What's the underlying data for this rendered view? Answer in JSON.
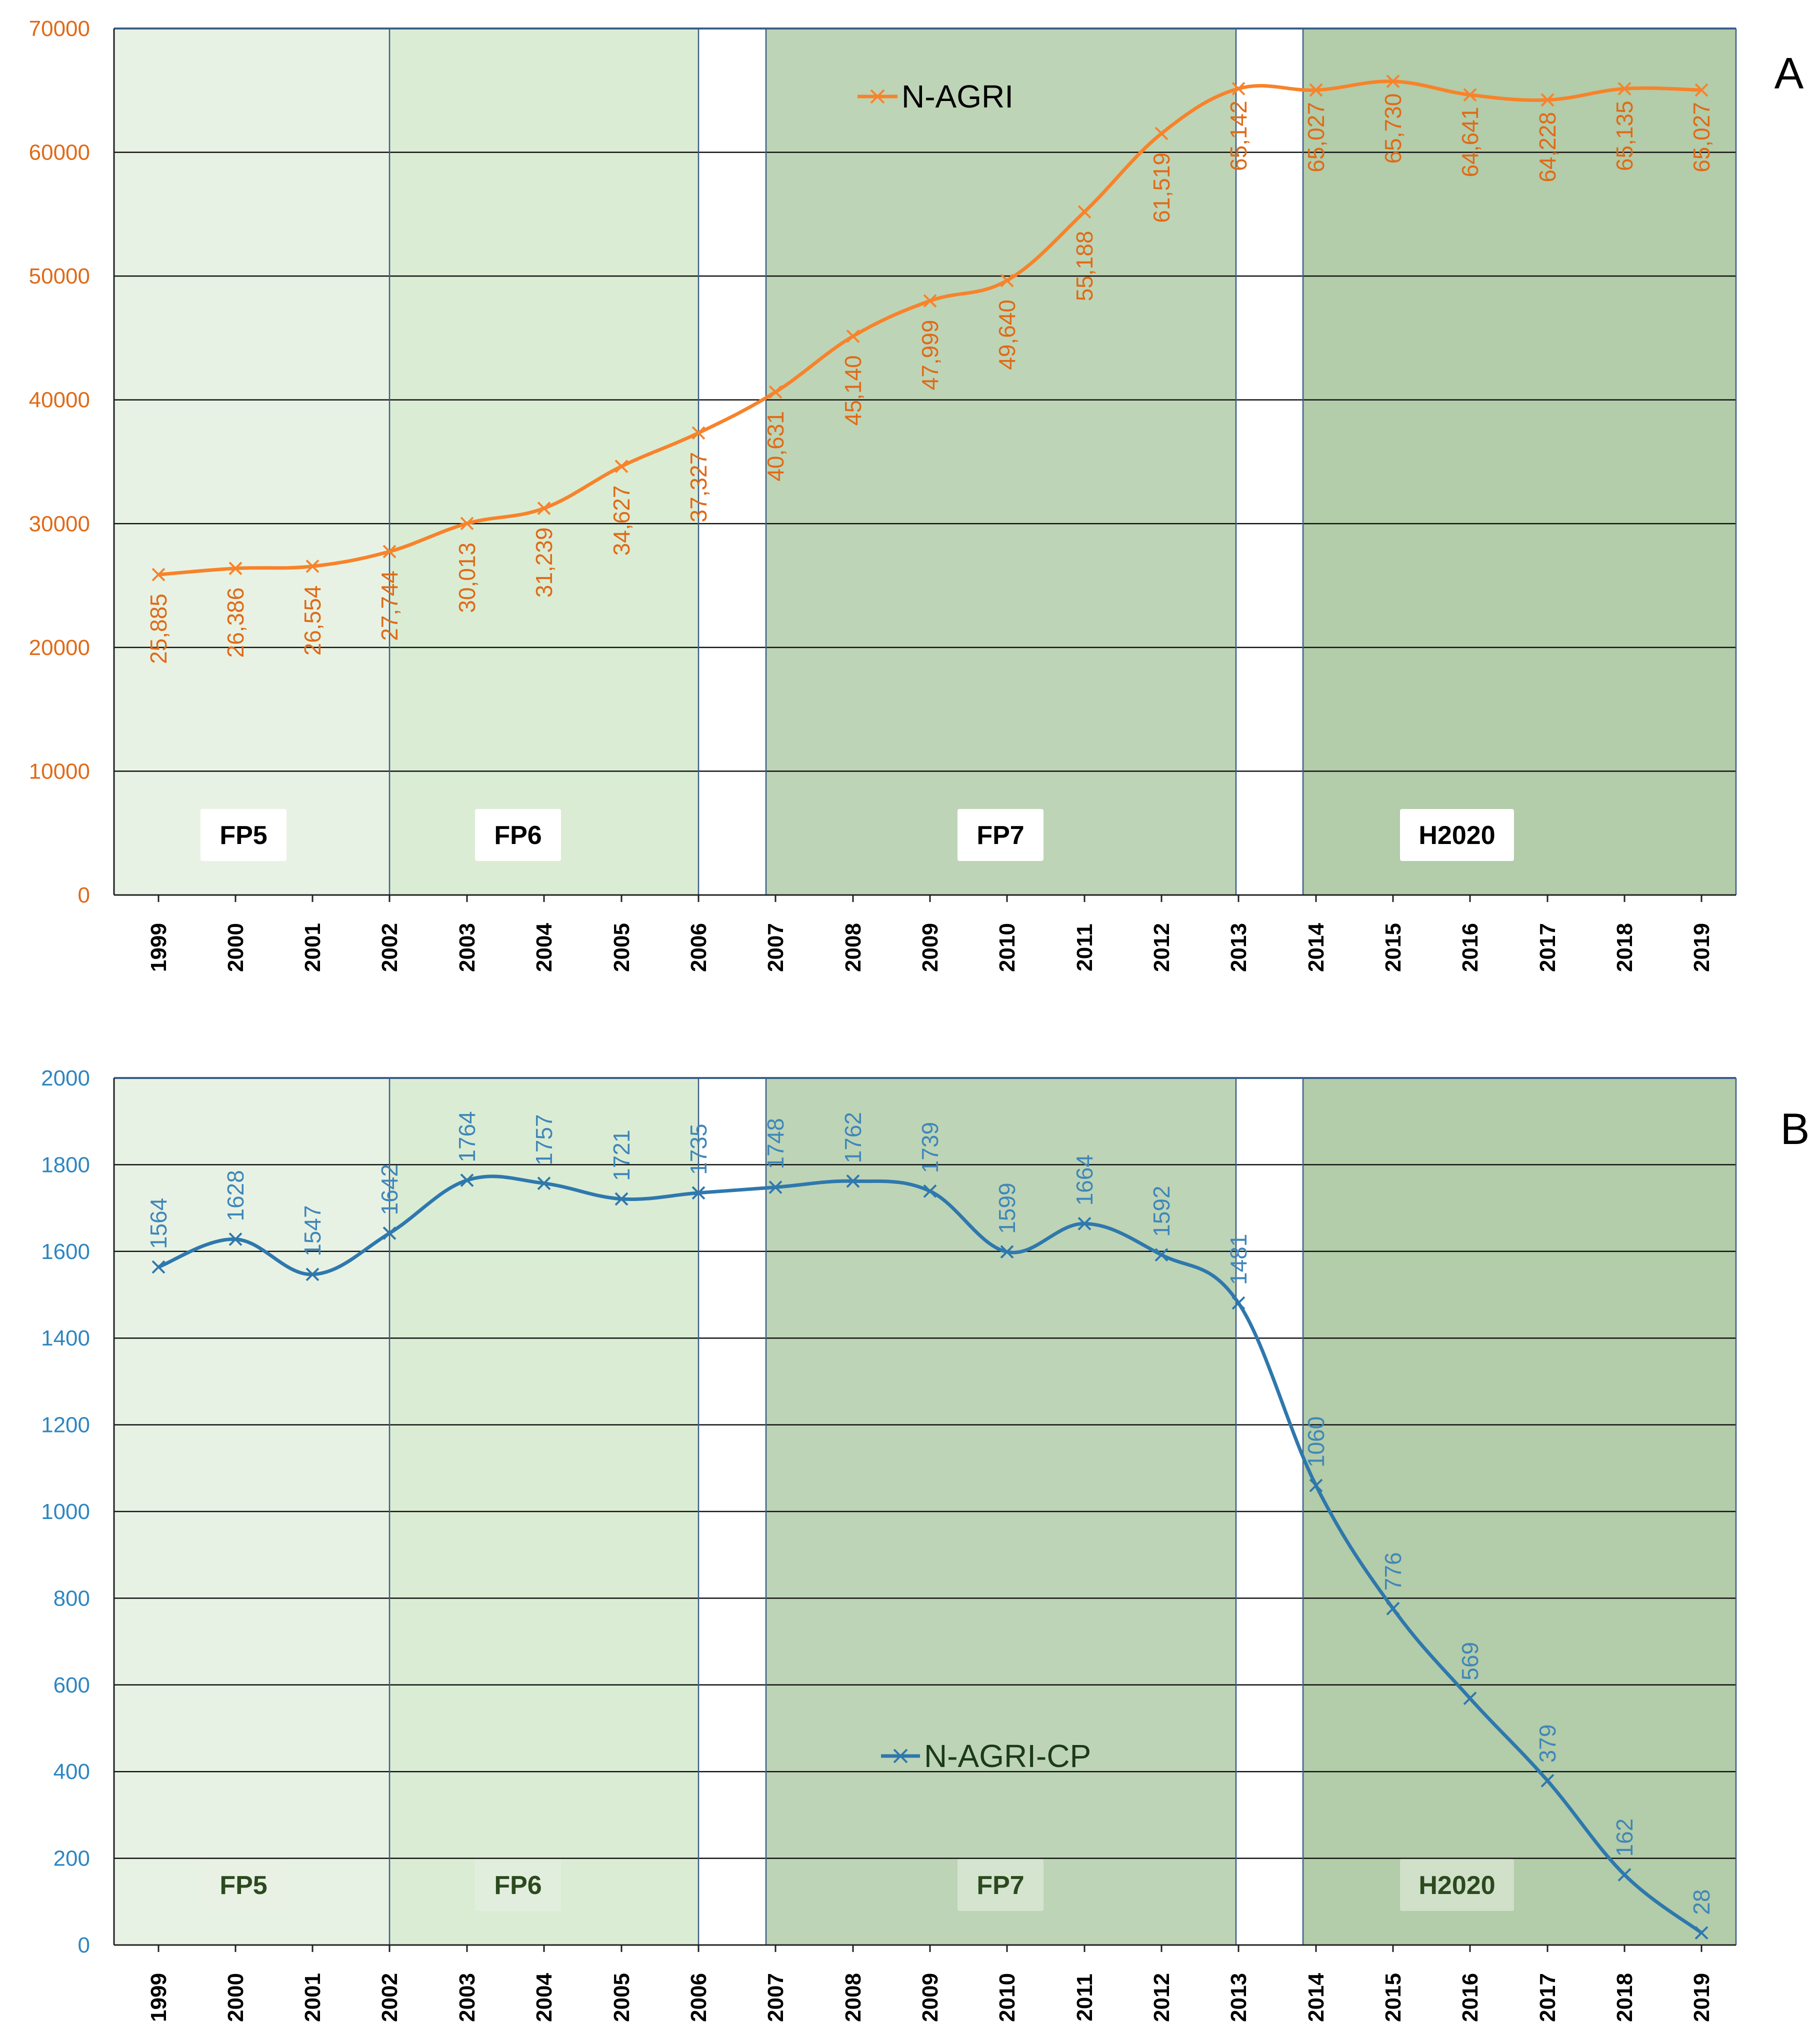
{
  "chart_data": [
    {
      "type": "line",
      "panel": "A",
      "legend": "N-AGRI",
      "line_color": "#f7832b",
      "label_color": "#e06a17",
      "axis_color": "#e06a17",
      "ylim": [
        0,
        70000
      ],
      "yticks": [
        "0",
        "10000",
        "20000",
        "30000",
        "40000",
        "50000",
        "60000",
        "70000"
      ],
      "x": [
        "1999",
        "2000",
        "2001",
        "2002",
        "2003",
        "2004",
        "2005",
        "2006",
        "2007",
        "2008",
        "2009",
        "2010",
        "2011",
        "2012",
        "2013",
        "2014",
        "2015",
        "2016",
        "2017",
        "2018",
        "2019"
      ],
      "values": [
        25885,
        26386,
        26554,
        27744,
        30013,
        31239,
        34627,
        37327,
        40631,
        45140,
        47999,
        49640,
        55188,
        61519,
        65142,
        65027,
        65730,
        64641,
        64228,
        65135,
        65027
      ],
      "data_labels": [
        "25,885",
        "26,386",
        "26,554",
        "27,744",
        "30,013",
        "31,239",
        "34,627",
        "37,327",
        "40,631",
        "45,140",
        "47,999",
        "49,640",
        "55,188",
        "61,519",
        "65,142",
        "65,027",
        "65,730",
        "64,641",
        "64,228",
        "65,135",
        "65,027"
      ],
      "periods": [
        {
          "name": "FP5",
          "from": "1999",
          "to": "2002",
          "color": "#e8f2e4"
        },
        {
          "name": "FP6",
          "from": "2002",
          "to": "2006",
          "color": "#dbecd4"
        },
        {
          "name": "FP7",
          "from": "2007",
          "to": "2013",
          "color": "#bed4b6"
        },
        {
          "name": "H2020",
          "from": "2014",
          "to": "2019",
          "color": "#b3cca9"
        }
      ]
    },
    {
      "type": "line",
      "panel": "B",
      "legend": "N-AGRI-CP",
      "line_color": "#2e78ad",
      "label_color": "#3f86b9",
      "axis_color": "#2e86c1",
      "ylim": [
        0,
        2000
      ],
      "yticks": [
        "0",
        "200",
        "400",
        "600",
        "800",
        "1000",
        "1200",
        "1400",
        "1600",
        "1800",
        "2000"
      ],
      "x": [
        "1999",
        "2000",
        "2001",
        "2002",
        "2003",
        "2004",
        "2005",
        "2006",
        "2007",
        "2008",
        "2009",
        "2010",
        "2011",
        "2012",
        "2013",
        "2014",
        "2015",
        "2016",
        "2017",
        "2018",
        "2019"
      ],
      "values": [
        1564,
        1628,
        1547,
        1642,
        1764,
        1757,
        1721,
        1735,
        1748,
        1762,
        1739,
        1599,
        1664,
        1592,
        1481,
        1060,
        776,
        569,
        379,
        162,
        28
      ],
      "data_labels": [
        "1564",
        "1628",
        "1547",
        "1642",
        "1764",
        "1757",
        "1721",
        "1735",
        "1748",
        "1762",
        "1739",
        "1599",
        "1664",
        "1592",
        "1481",
        "1060",
        "776",
        "569",
        "379",
        "162",
        "28"
      ],
      "periods": [
        {
          "name": "FP5",
          "from": "1999",
          "to": "2002",
          "color": "#e8f2e4"
        },
        {
          "name": "FP6",
          "from": "2002",
          "to": "2006",
          "color": "#dbecd4"
        },
        {
          "name": "FP7",
          "from": "2007",
          "to": "2013",
          "color": "#bed4b6"
        },
        {
          "name": "H2020",
          "from": "2014",
          "to": "2019",
          "color": "#b3cca9"
        }
      ]
    }
  ]
}
